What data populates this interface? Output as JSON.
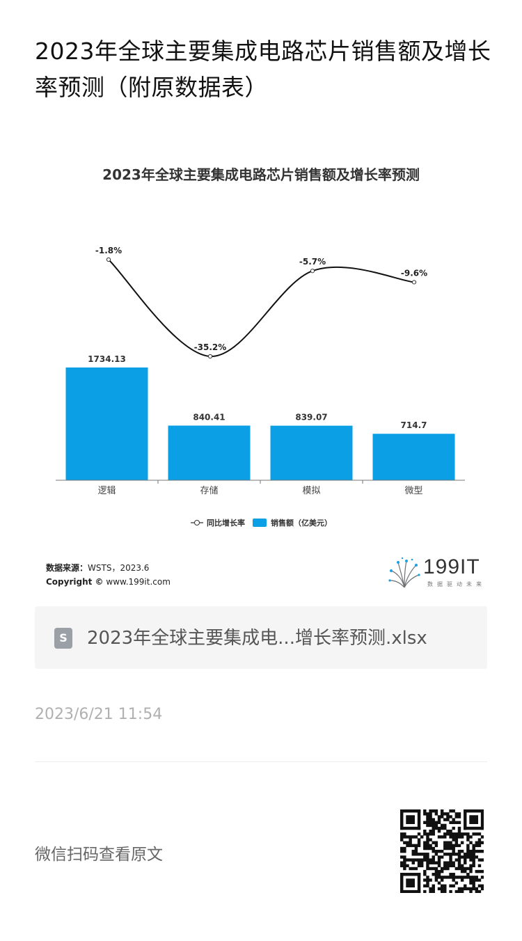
{
  "page": {
    "title": "2023年全球主要集成电路芯片销售额及增长率预测（附原数据表）"
  },
  "chart_data": {
    "type": "bar",
    "title": "2023年全球主要集成电路芯片销售额及增长率预测",
    "categories": [
      "逻辑",
      "存储",
      "模拟",
      "微型"
    ],
    "series": [
      {
        "name": "销售额（亿美元）",
        "type": "bar",
        "values": [
          1734.13,
          840.41,
          839.07,
          714.7
        ],
        "labels": [
          "1734.13",
          "840.41",
          "839.07",
          "714.7"
        ],
        "color": "#0b9fe6"
      },
      {
        "name": "同比增长率",
        "type": "line",
        "values": [
          -1.8,
          -35.2,
          -5.7,
          -9.6
        ],
        "labels": [
          "-1.8%",
          "-35.2%",
          "-5.7%",
          "-9.6%"
        ],
        "color": "#111111"
      }
    ],
    "legend": [
      "同比增长率",
      "销售额（亿美元）"
    ],
    "legend_position": "bottom",
    "grid": false
  },
  "source": {
    "label": "数据来源：",
    "value": "WSTS，2023.6",
    "copyright_label": "Copyright ©",
    "copyright_value": "www.199it.com"
  },
  "logo": {
    "text": "199IT",
    "tagline": "数据驱动未来"
  },
  "file": {
    "icon": "file-s-icon",
    "icon_glyph": "S",
    "name": "2023年全球主要集成电...增长率预测.xlsx"
  },
  "timestamp": "2023/6/21 11:54",
  "footer": {
    "scan_text": "微信扫码查看原文"
  }
}
